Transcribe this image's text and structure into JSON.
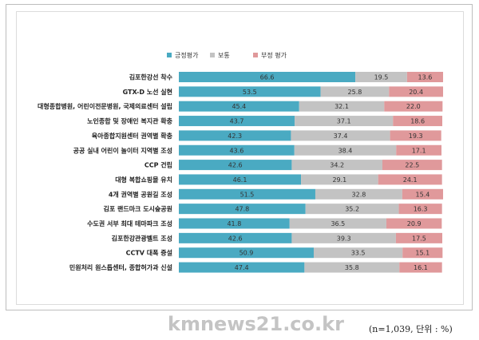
{
  "chart_data": {
    "type": "bar",
    "orientation": "horizontal",
    "stacked": true,
    "legend_position": "top",
    "categories": [
      "김포한강선 착수",
      "GTX-D 노선 실현",
      "대형종합병원, 어린이전문병원, 국제의료센터 설립",
      "노인종합 및 장애인 복지관 확충",
      "육아종합지원센터 권역별 확충",
      "공공 실내 어린이 놀이터 지역별 조성",
      "CCP 건립",
      "대형 복합쇼핑몰 유치",
      "4개 권역별 공원길 조성",
      "김포 랜드마크 도시숲공원",
      "수도권 서부 최대 테마파크 조성",
      "김포한강관광벨트 조성",
      "CCTV 대폭 증설",
      "민원처리 원스톱센터, 종합허가과 신설"
    ],
    "series": [
      {
        "name": "긍정평가",
        "color": "#4aaac2",
        "values": [
          66.6,
          53.5,
          45.4,
          43.7,
          42.3,
          43.6,
          42.6,
          46.1,
          51.5,
          47.8,
          41.8,
          42.6,
          50.9,
          47.4
        ]
      },
      {
        "name": "보통",
        "color": "#c3c3c3",
        "values": [
          19.5,
          25.8,
          32.1,
          37.1,
          37.4,
          38.4,
          34.2,
          29.1,
          32.8,
          35.2,
          36.5,
          39.3,
          33.5,
          35.8
        ]
      },
      {
        "name": "부정 평가",
        "color": "#e0999b",
        "values": [
          13.6,
          20.4,
          22.0,
          18.6,
          19.3,
          17.1,
          22.5,
          24.1,
          15.4,
          16.3,
          20.9,
          17.5,
          15.1,
          16.1
        ]
      }
    ],
    "xlim": [
      0,
      100
    ]
  },
  "watermark": "kmnews21.co.kr",
  "note": "(n=1,039, 단위 : %)"
}
